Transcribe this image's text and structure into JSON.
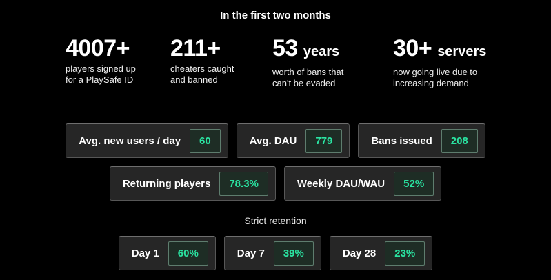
{
  "title": "In the first two months",
  "stats": [
    {
      "value": "4007+",
      "suffix": "",
      "desc1": "players signed up",
      "desc2": "for a PlaySafe ID"
    },
    {
      "value": "211+",
      "suffix": "",
      "desc1": "cheaters caught",
      "desc2": "and banned"
    },
    {
      "value": "53",
      "suffix": "years",
      "desc1": "worth of bans that",
      "desc2": "can't be evaded"
    },
    {
      "value": "30+",
      "suffix": "servers",
      "desc1": "now going live due to",
      "desc2": "increasing demand"
    }
  ],
  "badge_rows": [
    [
      {
        "label": "Avg. new users / day",
        "value": "60"
      },
      {
        "label": "Avg. DAU",
        "value": "779"
      },
      {
        "label": "Bans issued",
        "value": "208"
      }
    ],
    [
      {
        "label": "Returning players",
        "value": "78.3%"
      },
      {
        "label": "Weekly DAU/WAU",
        "value": "52%"
      }
    ]
  ],
  "retention": {
    "heading": "Strict retention",
    "badges": [
      {
        "label": "Day 1",
        "value": "60%"
      },
      {
        "label": "Day 7",
        "value": "39%"
      },
      {
        "label": "Day 28",
        "value": "23%"
      }
    ]
  },
  "colors": {
    "background": "#000000",
    "accent_green": "#2AE3A1",
    "chip_bg": "#1E2D25",
    "chip_border": "#5E7D6E",
    "badge_bg": "#262626",
    "badge_border": "#575757",
    "text_primary": "#FFFFFF",
    "text_secondary": "#EDEDED"
  },
  "chart_data": {
    "type": "table",
    "title": "In the first two months",
    "rows": [
      [
        "Players signed up for a PlaySafe ID",
        "4007+"
      ],
      [
        "Cheaters caught and banned",
        "211+"
      ],
      [
        "Years worth of bans that can't be evaded",
        "53"
      ],
      [
        "Servers now going live due to increasing demand",
        "30+"
      ],
      [
        "Avg. new users / day",
        "60"
      ],
      [
        "Avg. DAU",
        "779"
      ],
      [
        "Bans issued",
        "208"
      ],
      [
        "Returning players",
        "78.3%"
      ],
      [
        "Weekly DAU/WAU",
        "52%"
      ],
      [
        "Strict retention Day 1",
        "60%"
      ],
      [
        "Strict retention Day 7",
        "39%"
      ],
      [
        "Strict retention Day 28",
        "23%"
      ]
    ]
  }
}
